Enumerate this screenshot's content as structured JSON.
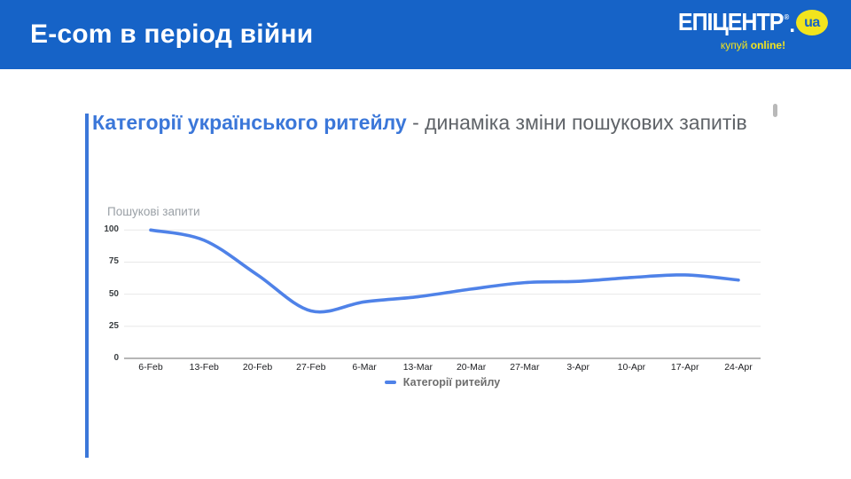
{
  "header": {
    "title": "E-com в період війни",
    "bg_color": "#1663c7"
  },
  "logo": {
    "brand": "ЕПІЦЕНТР",
    "reg_mark": "®",
    "dot": ".",
    "tld": "ua",
    "tagline_regular": "купуй ",
    "tagline_bold": "online!",
    "yellow": "#f2e41d",
    "blue": "#1663c7"
  },
  "content_title": {
    "highlight": "Категорії українського ритейлу",
    "rest": " - динаміка зміни пошукових запитів",
    "highlight_color": "#3b77d9",
    "rest_color": "#5f6368"
  },
  "chart_data": {
    "type": "line",
    "axis_title": "Пошукові запити",
    "categories": [
      "6-Feb",
      "13-Feb",
      "20-Feb",
      "27-Feb",
      "6-Mar",
      "13-Mar",
      "20-Mar",
      "27-Mar",
      "3-Apr",
      "10-Apr",
      "17-Apr",
      "24-Apr"
    ],
    "series": [
      {
        "name": "Категорії ритейлу",
        "color": "#4f82e8",
        "values": [
          100,
          92,
          65,
          37,
          44,
          48,
          54,
          59,
          60,
          63,
          65,
          61
        ]
      }
    ],
    "ylim": [
      0,
      100
    ],
    "yticks": [
      0,
      25,
      50,
      75,
      100
    ],
    "grid": true,
    "gridline_color": "#e8e8e8",
    "baseline_color": "#9e9e9e",
    "legend_position": "bottom"
  }
}
